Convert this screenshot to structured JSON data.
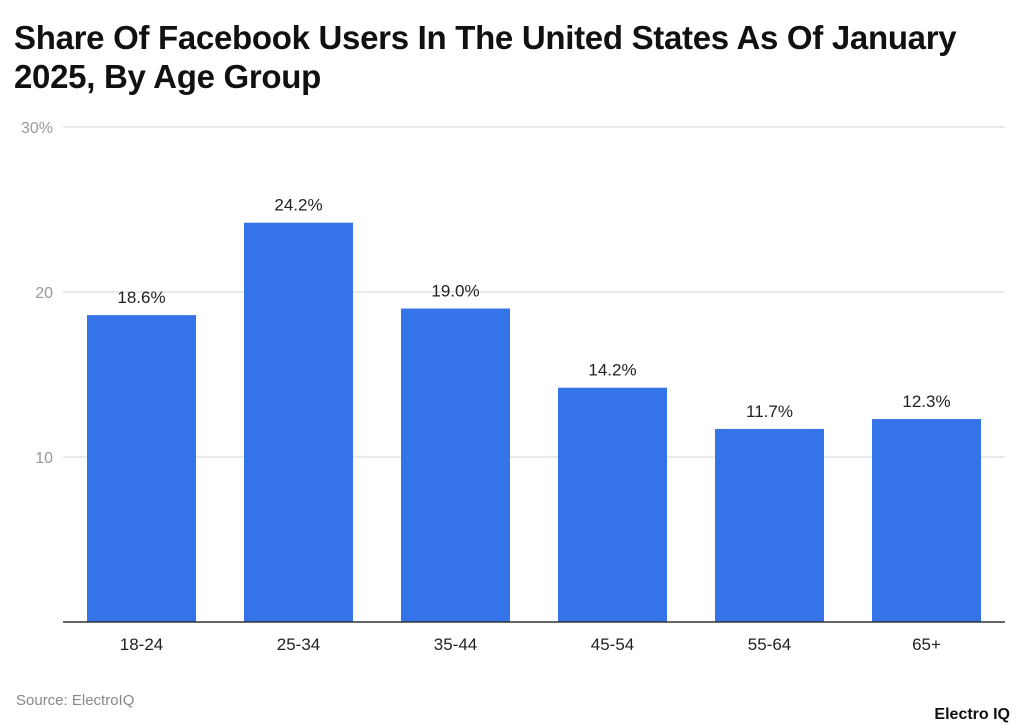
{
  "title": "Share Of Facebook Users In The United States As Of January 2025, By Age Group",
  "source": "Source: ElectroIQ",
  "logo": "Electro IQ",
  "colors": {
    "bar": "#3474E8",
    "grid": "#E3E3E3",
    "axis": "#333333"
  },
  "chart_data": {
    "type": "bar",
    "title": "Share Of Facebook Users In The United States As Of January 2025, By Age Group",
    "categories": [
      "18-24",
      "25-34",
      "35-44",
      "45-54",
      "55-64",
      "65+"
    ],
    "values": [
      18.6,
      24.2,
      19.0,
      14.2,
      11.7,
      12.3
    ],
    "data_labels": [
      "18.6%",
      "24.2%",
      "19.0%",
      "14.2%",
      "11.7%",
      "12.3%"
    ],
    "ylim": [
      0,
      30
    ],
    "yticks": [
      {
        "value": 10,
        "label": "10"
      },
      {
        "value": 20,
        "label": "20"
      },
      {
        "value": 30,
        "label": "30%"
      }
    ],
    "grid": true,
    "xlabel": "",
    "ylabel": ""
  }
}
